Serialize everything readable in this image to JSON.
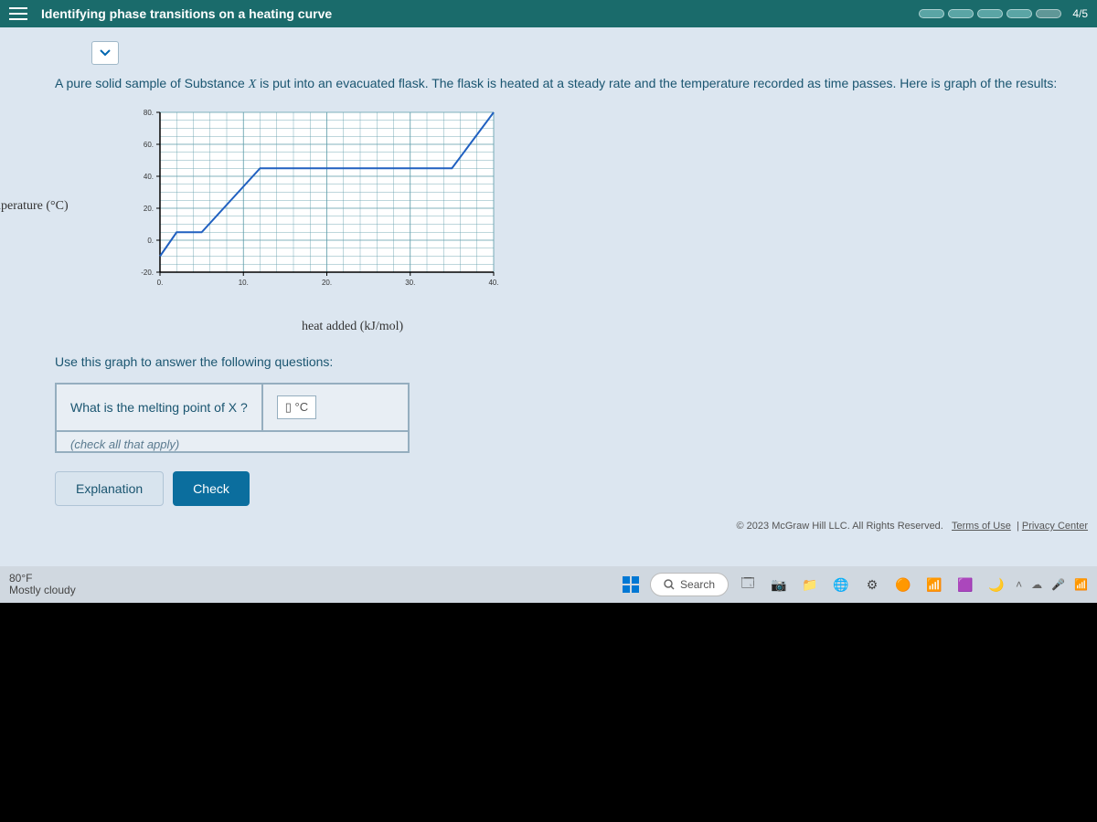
{
  "header": {
    "title": "Identifying phase transitions on a heating curve",
    "progress_text": "4/5"
  },
  "problem": {
    "intro": "A pure solid sample of Substance X is put into an evacuated flask. The flask is heated at a steady rate and the temperature recorded as time passes. Here is graph of the results:"
  },
  "chart": {
    "type": "line",
    "y_axis_label": "temperature (°C)",
    "x_axis_label": "heat added (kJ/mol)",
    "x_ticks": [
      "0.",
      "10.",
      "20.",
      "30.",
      "40."
    ],
    "y_ticks": [
      "-20.",
      "0.",
      "20.",
      "40.",
      "60.",
      "80."
    ],
    "xlim_min": 0,
    "xlim_max": 40,
    "ylim_min": -20,
    "ylim_max": 80,
    "grid_color": "#5a9aa8",
    "line_color": "#2060c0",
    "background_color": "#ffffff",
    "tick_fontsize": 8,
    "label_fontsize": 14,
    "line_width": 2,
    "data_points": [
      {
        "x": 0,
        "y": -10
      },
      {
        "x": 2,
        "y": 5
      },
      {
        "x": 5,
        "y": 5
      },
      {
        "x": 12,
        "y": 45
      },
      {
        "x": 35,
        "y": 45
      },
      {
        "x": 40,
        "y": 85
      }
    ]
  },
  "followup_text": "Use this graph to answer the following questions:",
  "question1": {
    "prompt": "What is the melting point of X ?",
    "answer_placeholder": "▯ °C"
  },
  "question2_hint": "(check all that apply)",
  "buttons": {
    "explanation": "Explanation",
    "check": "Check"
  },
  "footer": {
    "copyright": "© 2023 McGraw Hill LLC. All Rights Reserved.",
    "terms": "Terms of Use",
    "privacy": "Privacy Center"
  },
  "taskbar": {
    "weather_temp": "80°F",
    "weather_cond": "Mostly cloudy",
    "search_label": "Search"
  }
}
